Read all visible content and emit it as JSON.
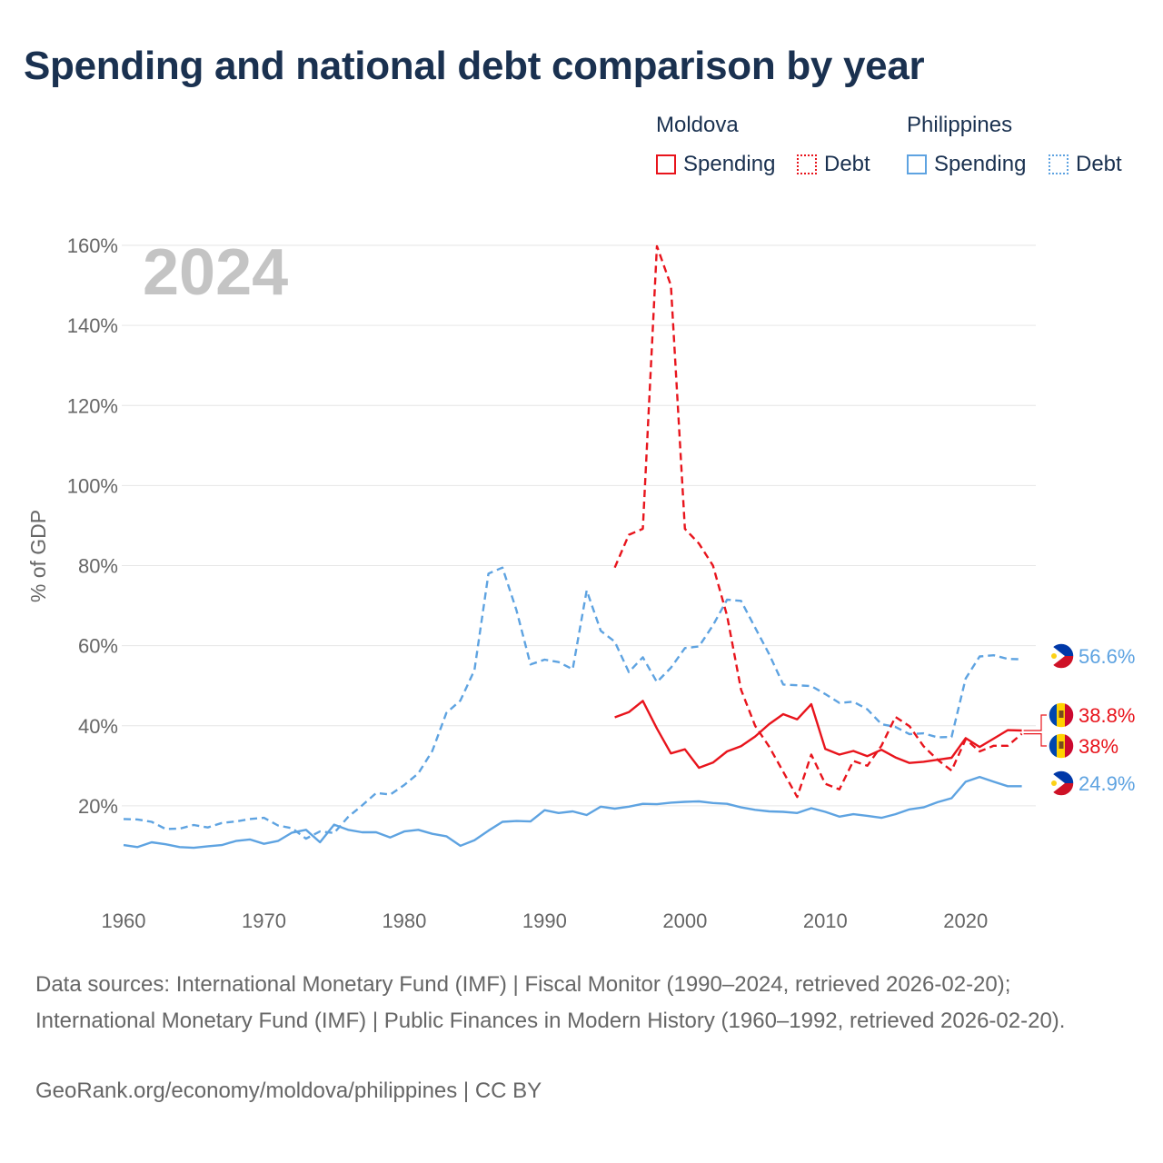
{
  "title": "Spending and national debt comparison by year",
  "legend": {
    "moldova": {
      "country": "Moldova",
      "spending": "Spending",
      "debt": "Debt"
    },
    "philippines": {
      "country": "Philippines",
      "spending": "Spending",
      "debt": "Debt"
    }
  },
  "colors": {
    "moldova": "#e8141c",
    "philippines": "#5ea3e1",
    "text": "#1a3150",
    "axis_text": "#666666"
  },
  "footer": {
    "sources": "Data sources: International Monetary Fund (IMF) | Fiscal Monitor (1990–2024, retrieved 2026-02-20); International Monetary Fund (IMF) | Public Finances in Modern History (1960–1992, retrieved 2026-02-20).",
    "credit": "GeoRank.org/economy/moldova/philippines | CC BY"
  },
  "chart_data": {
    "type": "line",
    "ylabel": "% of GDP",
    "year_label": "2024",
    "xlim": [
      1960,
      2025
    ],
    "ylim": [
      0,
      160
    ],
    "xticks": [
      1960,
      1970,
      1980,
      1990,
      2000,
      2010,
      2020
    ],
    "yticks": [
      20,
      40,
      60,
      80,
      100,
      120,
      140,
      160
    ],
    "series": [
      {
        "name": "Philippines Debt",
        "country": "philippines",
        "style": "dashed",
        "x": [
          1960,
          1961,
          1962,
          1963,
          1964,
          1965,
          1966,
          1967,
          1968,
          1969,
          1970,
          1971,
          1972,
          1973,
          1974,
          1975,
          1976,
          1977,
          1978,
          1979,
          1980,
          1981,
          1982,
          1983,
          1984,
          1985,
          1986,
          1987,
          1988,
          1989,
          1990,
          1991,
          1992,
          1993,
          1994,
          1995,
          1996,
          1997,
          1998,
          1999,
          2000,
          2001,
          2002,
          2003,
          2004,
          2005,
          2006,
          2007,
          2008,
          2009,
          2010,
          2011,
          2012,
          2013,
          2014,
          2015,
          2016,
          2017,
          2018,
          2019,
          2020,
          2021,
          2022,
          2023,
          2024
        ],
        "values": [
          16.7,
          16.6,
          16.0,
          14.2,
          14.3,
          15.2,
          14.6,
          15.7,
          16.1,
          16.7,
          17.0,
          15.1,
          14.4,
          11.8,
          13.6,
          13.2,
          17.2,
          20.1,
          23.2,
          22.8,
          25.2,
          28.1,
          33.7,
          43.2,
          46.3,
          53.9,
          78.0,
          79.5,
          68.8,
          55.3,
          56.5,
          55.9,
          54.1,
          73.8,
          63.7,
          61.0,
          53.4,
          57.1,
          50.9,
          54.5,
          59.4,
          59.8,
          65.1,
          71.5,
          71.2,
          64.5,
          57.9,
          50.3,
          50.1,
          49.9,
          47.9,
          45.7,
          46.0,
          44.1,
          40.4,
          39.7,
          37.9,
          38.1,
          37.1,
          37.2,
          51.8,
          57.3,
          57.6,
          56.7,
          56.6
        ],
        "end_label": "56.6%"
      },
      {
        "name": "Philippines Spending",
        "country": "philippines",
        "style": "solid",
        "x": [
          1960,
          1961,
          1962,
          1963,
          1964,
          1965,
          1966,
          1967,
          1968,
          1969,
          1970,
          1971,
          1972,
          1973,
          1974,
          1975,
          1976,
          1977,
          1978,
          1979,
          1980,
          1981,
          1982,
          1983,
          1984,
          1985,
          1986,
          1987,
          1988,
          1989,
          1990,
          1991,
          1992,
          1993,
          1994,
          1995,
          1996,
          1997,
          1998,
          1999,
          2000,
          2001,
          2002,
          2003,
          2004,
          2005,
          2006,
          2007,
          2008,
          2009,
          2010,
          2011,
          2012,
          2013,
          2014,
          2015,
          2016,
          2017,
          2018,
          2019,
          2020,
          2021,
          2022,
          2023,
          2024
        ],
        "values": [
          10.2,
          9.7,
          10.9,
          10.4,
          9.7,
          9.5,
          9.9,
          10.2,
          11.2,
          11.6,
          10.5,
          11.2,
          13.3,
          14.0,
          10.9,
          15.3,
          14.0,
          13.4,
          13.4,
          12.1,
          13.6,
          14.0,
          13.0,
          12.4,
          10.0,
          11.4,
          13.8,
          16.0,
          16.2,
          16.1,
          18.9,
          18.2,
          18.6,
          17.7,
          19.8,
          19.3,
          19.8,
          20.5,
          20.4,
          20.8,
          21.0,
          21.1,
          20.7,
          20.5,
          19.6,
          19.0,
          18.6,
          18.5,
          18.2,
          19.4,
          18.5,
          17.3,
          17.9,
          17.5,
          17.0,
          17.9,
          19.1,
          19.6,
          20.9,
          21.9,
          26.0,
          27.2,
          26.0,
          24.9,
          24.9
        ],
        "end_label": "24.9%"
      },
      {
        "name": "Moldova Debt",
        "country": "moldova",
        "style": "dashed",
        "x": [
          1995,
          1996,
          1997,
          1998,
          1999,
          2000,
          2001,
          2002,
          2003,
          2004,
          2005,
          2006,
          2007,
          2008,
          2009,
          2010,
          2011,
          2012,
          2013,
          2014,
          2015,
          2016,
          2017,
          2018,
          2019,
          2020,
          2021,
          2022,
          2023,
          2024
        ],
        "values": [
          79.5,
          87.7,
          89.2,
          159.8,
          150.0,
          89.2,
          85.5,
          80.0,
          67.5,
          49.0,
          40.0,
          34.8,
          28.5,
          22.2,
          32.8,
          25.5,
          24.1,
          31.2,
          30.0,
          35.0,
          42.2,
          39.9,
          34.9,
          31.5,
          28.8,
          36.6,
          33.6,
          35.0,
          35.0,
          38.0
        ],
        "end_label": "38%"
      },
      {
        "name": "Moldova Spending",
        "country": "moldova",
        "style": "solid",
        "x": [
          1995,
          1996,
          1997,
          1998,
          1999,
          2000,
          2001,
          2002,
          2003,
          2004,
          2005,
          2006,
          2007,
          2008,
          2009,
          2010,
          2011,
          2012,
          2013,
          2014,
          2015,
          2016,
          2017,
          2018,
          2019,
          2020,
          2021,
          2022,
          2023,
          2024
        ],
        "values": [
          42.1,
          43.4,
          46.2,
          39.3,
          33.1,
          34.1,
          29.5,
          30.8,
          33.6,
          34.9,
          37.3,
          40.4,
          42.9,
          41.6,
          45.4,
          34.2,
          32.8,
          33.7,
          32.4,
          34.0,
          32.1,
          30.7,
          31.0,
          31.5,
          32.0,
          36.9,
          34.7,
          36.8,
          38.9,
          38.8
        ],
        "end_label": "38.8%"
      }
    ]
  }
}
